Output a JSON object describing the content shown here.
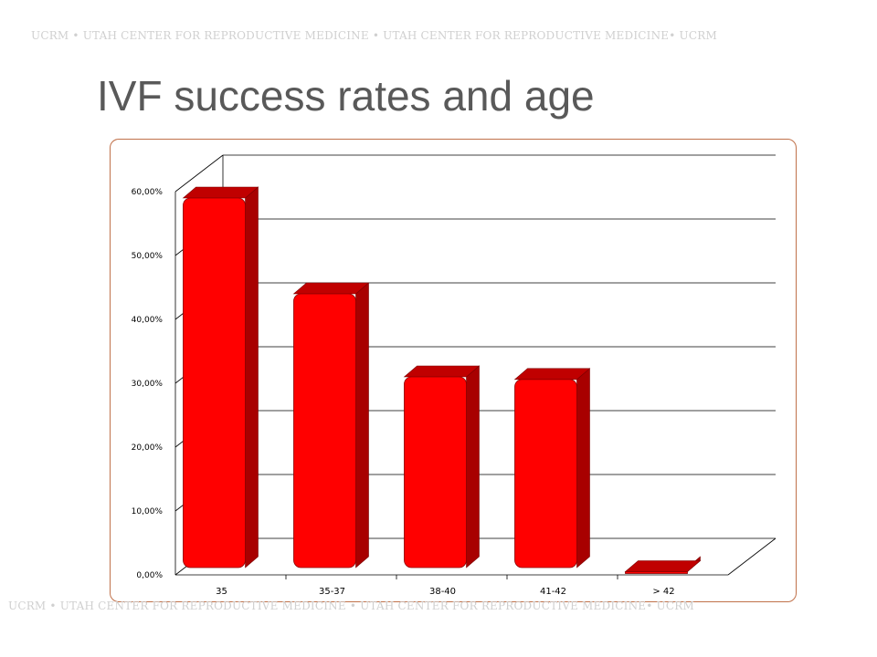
{
  "banner": {
    "top": "UCRM • UTAH CENTER FOR REPRODUCTIVE MEDICINE • UTAH CENTER FOR REPRODUCTIVE MEDICINE• UCRM",
    "bottom": "UCRM • UTAH CENTER FOR REPRODUCTIVE MEDICINE • UTAH CENTER FOR REPRODUCTIVE MEDICINE• UCRM"
  },
  "slide": {
    "title": "IVF success rates and age"
  },
  "colors": {
    "bar_front": "#ff0000",
    "bar_side": "#a80000",
    "bar_top": "#c00000",
    "grid": "#000000",
    "frame_border": "#c0714a"
  },
  "chart_data": {
    "type": "bar",
    "style": "3d",
    "categories": [
      "35",
      "35-37",
      "38-40",
      "41-42",
      "> 42"
    ],
    "values": [
      0.59,
      0.44,
      0.31,
      0.306,
      0.005
    ],
    "ylim": [
      0,
      0.6
    ],
    "yticks": [
      0,
      0.1,
      0.2,
      0.3,
      0.4,
      0.5,
      0.6
    ],
    "ytick_labels": [
      "0,00%",
      "10,00%",
      "20,00%",
      "30,00%",
      "40,00%",
      "50,00%",
      "60,00%"
    ],
    "grid": true,
    "legend": "none"
  }
}
